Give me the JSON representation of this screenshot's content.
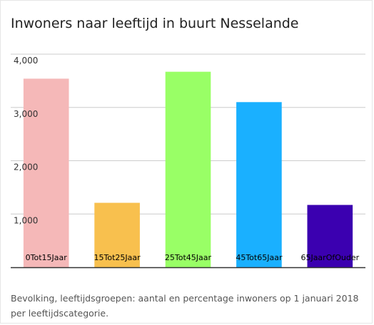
{
  "title": "Inwoners naar leeftijd in buurt Nesselande",
  "caption": "Bevolking, leeftijdsgroepen: aantal en percentage inwoners op 1 januari 2018 per leeftijdscategorie.",
  "chart_data": {
    "type": "bar",
    "title": "Inwoners naar leeftijd in buurt Nesselande",
    "categories": [
      "0Tot15Jaar",
      "15Tot25Jaar",
      "25Tot45Jaar",
      "45Tot65Jaar",
      "65JaarOfOuder"
    ],
    "values": [
      3540,
      1210,
      3670,
      3100,
      1170
    ],
    "colors": [
      "#f5b8b8",
      "#f8c04e",
      "#99ff66",
      "#1ab0ff",
      "#3b00b0"
    ],
    "y_ticks": [
      1000,
      2000,
      3000,
      4000
    ],
    "y_tick_labels": [
      "1,000",
      "2,000",
      "3,000",
      "4,000"
    ],
    "ylim": [
      0,
      4000
    ],
    "grid": true,
    "legend": "none"
  }
}
